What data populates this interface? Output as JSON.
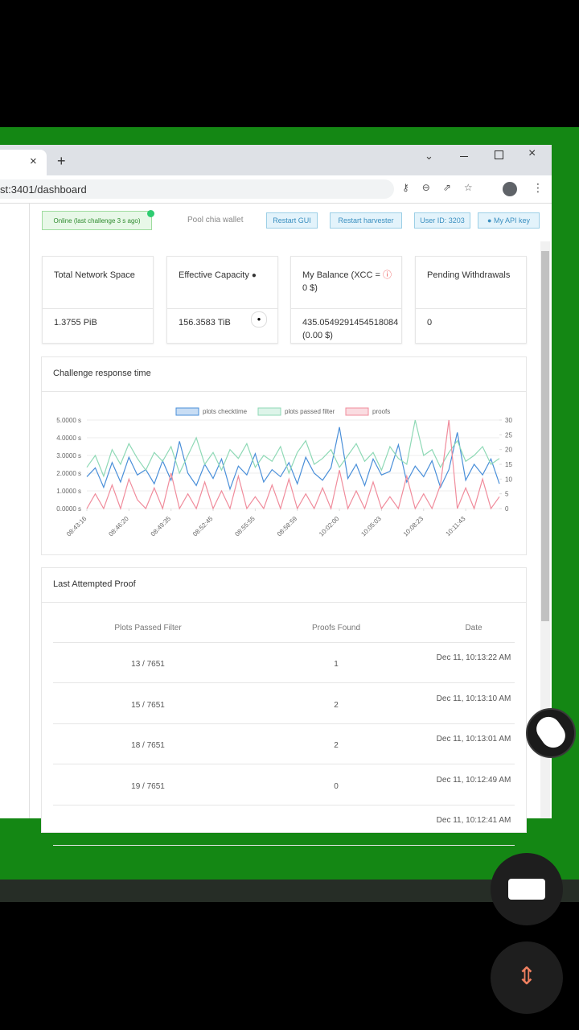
{
  "browser": {
    "url": "st:3401/dashboard"
  },
  "toolbar": {
    "status": "Online (last challenge 3 s ago)",
    "wallet": "Pool chia wallet",
    "buttons": [
      "Restart GUI",
      "Restart harvester",
      "User ID: 3203",
      "My API key"
    ]
  },
  "cards": [
    {
      "title": "Total Network Space",
      "value": "1.3755 PiB"
    },
    {
      "title": "Effective Capacity",
      "value": "156.3583 TiB"
    },
    {
      "title": "My Balance (XCC =",
      "title_suffix": "0 $)",
      "value": "435.0549291454518084",
      "value_note": "(0.00 $)"
    },
    {
      "title": "Pending Withdrawals",
      "value": "0"
    }
  ],
  "chart": {
    "type": "line",
    "title": "Challenge response time",
    "categories": [
      "08:43:16",
      null,
      null,
      null,
      null,
      "08:46:20",
      null,
      null,
      null,
      null,
      "08:49:35",
      null,
      null,
      null,
      null,
      "08:52:45",
      null,
      null,
      null,
      null,
      "08:55:55",
      null,
      null,
      null,
      null,
      "08:58:59",
      null,
      null,
      null,
      null,
      "10:02:00",
      null,
      null,
      null,
      null,
      "10:05:03",
      null,
      null,
      null,
      null,
      "10:08:23",
      null,
      null,
      null,
      null,
      "10:11:43",
      null,
      null,
      null,
      null
    ],
    "series": [
      {
        "name": "plots checktime",
        "color": "#4a8fd9",
        "axis": "y",
        "values": [
          1.8,
          2.3,
          1.2,
          2.6,
          1.5,
          2.9,
          1.9,
          2.2,
          1.4,
          2.7,
          1.6,
          3.8,
          2.0,
          1.3,
          2.5,
          1.7,
          2.8,
          1.1,
          2.4,
          1.9,
          3.1,
          1.5,
          2.2,
          1.8,
          2.6,
          1.4,
          2.9,
          2.0,
          1.6,
          2.3,
          4.6,
          1.7,
          2.5,
          1.3,
          2.8,
          1.9,
          2.1,
          3.6,
          1.5,
          2.4,
          1.8,
          2.7,
          1.2,
          2.2,
          4.3,
          1.6,
          2.5,
          1.9,
          2.8,
          1.4
        ]
      },
      {
        "name": "plots passed filter",
        "color": "#8fd9b6",
        "axis": "y2",
        "values": [
          14,
          18,
          11,
          20,
          15,
          22,
          17,
          13,
          19,
          16,
          21,
          12,
          18,
          24,
          15,
          19,
          13,
          20,
          17,
          22,
          14,
          18,
          16,
          21,
          12,
          19,
          23,
          15,
          17,
          20,
          14,
          18,
          22,
          16,
          19,
          13,
          21,
          17,
          15,
          30,
          18,
          20,
          14,
          19,
          23,
          16,
          18,
          21,
          15,
          17
        ]
      },
      {
        "name": "proofs",
        "color": "#f08c9c",
        "axis": "y2",
        "values": [
          0,
          5,
          0,
          8,
          0,
          10,
          3,
          0,
          7,
          0,
          12,
          0,
          5,
          0,
          9,
          0,
          6,
          0,
          11,
          0,
          4,
          0,
          8,
          0,
          10,
          0,
          5,
          0,
          7,
          0,
          13,
          0,
          6,
          0,
          9,
          0,
          4,
          0,
          11,
          0,
          5,
          0,
          8,
          30,
          0,
          7,
          0,
          10,
          0,
          4
        ]
      }
    ],
    "ylim": [
      0,
      5
    ],
    "yticks": [
      {
        "value": 0,
        "label": "0.0000 s"
      },
      {
        "value": 1,
        "label": "1.0000 s"
      },
      {
        "value": 2,
        "label": "2.0000 s"
      },
      {
        "value": 3,
        "label": "3.0000 s"
      },
      {
        "value": 4,
        "label": "4.0000 s"
      },
      {
        "value": 5,
        "label": "5.0000 s"
      }
    ],
    "y2lim": [
      0,
      30
    ],
    "y2ticks": [
      0,
      5,
      10,
      15,
      20,
      25,
      30
    ],
    "grid": true
  },
  "table": {
    "title": "Last Attempted Proof",
    "columns": [
      "Plots Passed Filter",
      "Proofs Found",
      "Date"
    ],
    "rows": [
      {
        "plots": "13 / 7651",
        "proofs": "1",
        "date": "Dec 11, 10:13:22 AM"
      },
      {
        "plots": "15 / 7651",
        "proofs": "2",
        "date": "Dec 11, 10:13:10 AM"
      },
      {
        "plots": "18 / 7651",
        "proofs": "2",
        "date": "Dec 11, 10:13:01 AM"
      },
      {
        "plots": "19 / 7651",
        "proofs": "0",
        "date": "Dec 11, 10:12:49 AM"
      },
      {
        "date": "Dec 11, 10:12:41 AM"
      }
    ]
  }
}
